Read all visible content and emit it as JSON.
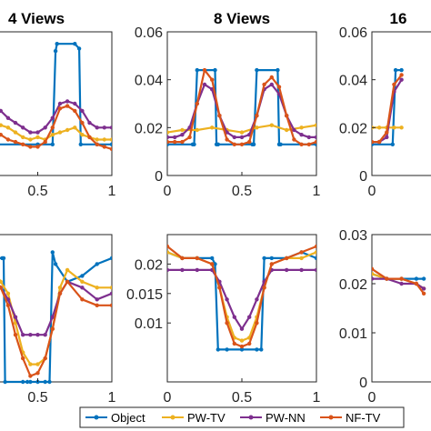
{
  "colors": {
    "object": "#0072BD",
    "pw_tv": "#EDB120",
    "pw_nn": "#7E2F8E",
    "nf_tv": "#D95319",
    "axis": "#262626"
  },
  "legend": {
    "position": "bottom-center",
    "entries": [
      "Object",
      "PW-TV",
      "PW-NN",
      "NF-TV"
    ]
  },
  "chart_data": [
    {
      "type": "line",
      "title": "4 Views",
      "xlim": [
        0,
        1
      ],
      "ylim": [
        0,
        0.06
      ],
      "xticks": [
        0.5,
        1
      ],
      "xtick_labels": [
        "0.5",
        "1"
      ],
      "yticks": [],
      "ytick_labels": [],
      "series": [
        {
          "name": "Object",
          "x": [
            0.0,
            0.01,
            0.05,
            0.12,
            0.15,
            0.5,
            0.6,
            0.62,
            0.63,
            0.75,
            0.78,
            0.79,
            0.9,
            1.0
          ],
          "y": [
            0.053,
            0.054,
            0.054,
            0.054,
            0.013,
            0.013,
            0.013,
            0.052,
            0.055,
            0.055,
            0.053,
            0.013,
            0.013,
            0.013
          ]
        },
        {
          "name": "PW-TV",
          "x": [
            0.0,
            0.05,
            0.1,
            0.15,
            0.2,
            0.25,
            0.3,
            0.35,
            0.4,
            0.45,
            0.5,
            0.55,
            0.6,
            0.65,
            0.7,
            0.75,
            0.8,
            0.85,
            0.9,
            0.95,
            1.0
          ],
          "y": [
            0.019,
            0.018,
            0.019,
            0.017,
            0.019,
            0.021,
            0.02,
            0.018,
            0.016,
            0.015,
            0.016,
            0.015,
            0.017,
            0.018,
            0.019,
            0.02,
            0.017,
            0.016,
            0.015,
            0.015,
            0.015
          ]
        },
        {
          "name": "PW-NN",
          "x": [
            0.0,
            0.05,
            0.1,
            0.15,
            0.2,
            0.25,
            0.3,
            0.35,
            0.4,
            0.45,
            0.5,
            0.55,
            0.6,
            0.65,
            0.7,
            0.75,
            0.8,
            0.85,
            0.9,
            0.95,
            1.0
          ],
          "y": [
            0.033,
            0.034,
            0.035,
            0.032,
            0.03,
            0.027,
            0.024,
            0.022,
            0.02,
            0.018,
            0.018,
            0.02,
            0.024,
            0.03,
            0.031,
            0.03,
            0.027,
            0.022,
            0.02,
            0.02,
            0.02
          ]
        },
        {
          "name": "NF-TV",
          "x": [
            0.0,
            0.05,
            0.1,
            0.15,
            0.2,
            0.25,
            0.3,
            0.35,
            0.4,
            0.45,
            0.5,
            0.55,
            0.6,
            0.65,
            0.7,
            0.75,
            0.8,
            0.85,
            0.9,
            0.95,
            1.0
          ],
          "y": [
            0.025,
            0.03,
            0.028,
            0.024,
            0.02,
            0.017,
            0.015,
            0.014,
            0.013,
            0.012,
            0.012,
            0.014,
            0.02,
            0.028,
            0.029,
            0.027,
            0.022,
            0.016,
            0.013,
            0.012,
            0.011
          ]
        }
      ]
    },
    {
      "type": "line",
      "title": "8 Views",
      "xlim": [
        0,
        1
      ],
      "ylim": [
        0,
        0.06
      ],
      "xticks": [
        0,
        0.5,
        1
      ],
      "xtick_labels": [
        "0",
        "0.5",
        "1"
      ],
      "yticks": [
        0,
        0.02,
        0.04,
        0.06
      ],
      "ytick_labels": [
        "0",
        "0.02",
        "0.04",
        "0.06"
      ],
      "series": [
        {
          "name": "Object",
          "x": [
            0.0,
            0.17,
            0.18,
            0.2,
            0.32,
            0.33,
            0.34,
            0.57,
            0.58,
            0.6,
            0.74,
            0.75,
            0.76,
            1.0
          ],
          "y": [
            0.013,
            0.013,
            0.013,
            0.044,
            0.044,
            0.013,
            0.013,
            0.013,
            0.013,
            0.044,
            0.044,
            0.013,
            0.013,
            0.013
          ]
        },
        {
          "name": "PW-TV",
          "x": [
            0.0,
            0.1,
            0.2,
            0.3,
            0.4,
            0.5,
            0.6,
            0.7,
            0.8,
            0.9,
            1.0
          ],
          "y": [
            0.018,
            0.019,
            0.019,
            0.02,
            0.019,
            0.018,
            0.02,
            0.021,
            0.019,
            0.02,
            0.021
          ]
        },
        {
          "name": "PW-NN",
          "x": [
            0.0,
            0.05,
            0.1,
            0.15,
            0.2,
            0.25,
            0.3,
            0.35,
            0.4,
            0.45,
            0.5,
            0.55,
            0.6,
            0.65,
            0.7,
            0.75,
            0.8,
            0.85,
            0.9,
            0.95,
            1.0
          ],
          "y": [
            0.016,
            0.016,
            0.017,
            0.02,
            0.03,
            0.038,
            0.036,
            0.025,
            0.018,
            0.016,
            0.016,
            0.017,
            0.025,
            0.036,
            0.038,
            0.034,
            0.025,
            0.019,
            0.017,
            0.016,
            0.016
          ]
        },
        {
          "name": "NF-TV",
          "x": [
            0.0,
            0.05,
            0.1,
            0.15,
            0.2,
            0.25,
            0.3,
            0.35,
            0.4,
            0.45,
            0.5,
            0.55,
            0.6,
            0.65,
            0.7,
            0.75,
            0.8,
            0.85,
            0.9,
            0.95,
            1.0
          ],
          "y": [
            0.014,
            0.014,
            0.014,
            0.016,
            0.03,
            0.044,
            0.04,
            0.025,
            0.015,
            0.013,
            0.013,
            0.014,
            0.025,
            0.038,
            0.041,
            0.037,
            0.025,
            0.015,
            0.013,
            0.013,
            0.014
          ]
        }
      ]
    },
    {
      "type": "line",
      "title": "16",
      "xlim": [
        0,
        1
      ],
      "ylim": [
        0,
        0.06
      ],
      "xticks": [
        0
      ],
      "xtick_labels": [
        "0"
      ],
      "yticks": [
        0,
        0.02,
        0.04,
        0.06
      ],
      "ytick_labels": [
        "0",
        "0.02",
        "0.04",
        "0.06"
      ],
      "series": [
        {
          "name": "Object",
          "x": [
            0.0,
            0.14,
            0.16,
            0.2
          ],
          "y": [
            0.013,
            0.013,
            0.044,
            0.044
          ]
        },
        {
          "name": "PW-TV",
          "x": [
            0.0,
            0.05,
            0.1,
            0.15,
            0.2
          ],
          "y": [
            0.02,
            0.02,
            0.02,
            0.02,
            0.02
          ]
        },
        {
          "name": "PW-NN",
          "x": [
            0.0,
            0.05,
            0.1,
            0.15,
            0.2
          ],
          "y": [
            0.014,
            0.014,
            0.016,
            0.035,
            0.04
          ]
        },
        {
          "name": "NF-TV",
          "x": [
            0.0,
            0.05,
            0.1,
            0.15,
            0.2
          ],
          "y": [
            0.014,
            0.014,
            0.018,
            0.038,
            0.042
          ]
        }
      ]
    },
    {
      "type": "line",
      "title": "",
      "xlim": [
        0,
        1
      ],
      "ylim": [
        0,
        0.025
      ],
      "xticks": [
        0.5,
        1
      ],
      "xtick_labels": [
        "0.5",
        "1"
      ],
      "yticks": [],
      "ytick_labels": [],
      "series": [
        {
          "name": "Object",
          "x": [
            0.0,
            0.2,
            0.26,
            0.27,
            0.28,
            0.4,
            0.43,
            0.45,
            0.5,
            0.55,
            0.58,
            0.6,
            0.62,
            0.7,
            0.8,
            0.9,
            1.0
          ],
          "y": [
            0.021,
            0.021,
            0.021,
            0.021,
            0.0,
            0.0,
            0.0,
            0.0,
            0.0,
            0.0,
            0.0,
            0.022,
            0.02,
            0.017,
            0.018,
            0.02,
            0.021
          ]
        },
        {
          "name": "PW-TV",
          "x": [
            0.0,
            0.1,
            0.2,
            0.25,
            0.3,
            0.35,
            0.4,
            0.45,
            0.5,
            0.55,
            0.6,
            0.65,
            0.7,
            0.8,
            0.9,
            1.0
          ],
          "y": [
            0.018,
            0.02,
            0.019,
            0.017,
            0.015,
            0.01,
            0.005,
            0.003,
            0.003,
            0.004,
            0.009,
            0.016,
            0.019,
            0.017,
            0.016,
            0.016
          ]
        },
        {
          "name": "PW-NN",
          "x": [
            0.0,
            0.1,
            0.2,
            0.25,
            0.3,
            0.35,
            0.4,
            0.45,
            0.5,
            0.55,
            0.6,
            0.65,
            0.7,
            0.8,
            0.9,
            1.0
          ],
          "y": [
            0.015,
            0.016,
            0.017,
            0.016,
            0.014,
            0.011,
            0.008,
            0.008,
            0.008,
            0.008,
            0.011,
            0.015,
            0.017,
            0.016,
            0.014,
            0.015
          ]
        },
        {
          "name": "NF-TV",
          "x": [
            0.0,
            0.1,
            0.2,
            0.25,
            0.3,
            0.35,
            0.4,
            0.45,
            0.5,
            0.55,
            0.6,
            0.65,
            0.7,
            0.8,
            0.9,
            1.0
          ],
          "y": [
            0.021,
            0.02,
            0.018,
            0.016,
            0.013,
            0.008,
            0.004,
            0.001,
            0.0015,
            0.004,
            0.009,
            0.015,
            0.017,
            0.014,
            0.013,
            0.013
          ]
        }
      ]
    },
    {
      "type": "line",
      "title": "",
      "xlim": [
        0,
        1
      ],
      "ylim": [
        0,
        0.025
      ],
      "xticks": [
        0,
        0.5,
        1
      ],
      "xtick_labels": [
        "0",
        "0.5",
        "1"
      ],
      "yticks": [
        0.01,
        0.015,
        0.02
      ],
      "ytick_labels": [
        "0.01",
        "0.015",
        "0.02"
      ],
      "series": [
        {
          "name": "Object",
          "x": [
            0.0,
            0.1,
            0.2,
            0.3,
            0.32,
            0.34,
            0.4,
            0.5,
            0.6,
            0.63,
            0.65,
            0.7,
            0.8,
            0.9,
            1.0
          ],
          "y": [
            0.022,
            0.021,
            0.021,
            0.021,
            0.02,
            0.0055,
            0.0055,
            0.0055,
            0.0055,
            0.0055,
            0.021,
            0.021,
            0.021,
            0.022,
            0.021
          ]
        },
        {
          "name": "PW-TV",
          "x": [
            0.0,
            0.1,
            0.2,
            0.3,
            0.35,
            0.4,
            0.45,
            0.5,
            0.55,
            0.6,
            0.65,
            0.7,
            0.8,
            0.9,
            1.0
          ],
          "y": [
            0.022,
            0.021,
            0.021,
            0.02,
            0.016,
            0.011,
            0.0075,
            0.007,
            0.0075,
            0.011,
            0.016,
            0.02,
            0.021,
            0.021,
            0.022
          ]
        },
        {
          "name": "PW-NN",
          "x": [
            0.0,
            0.1,
            0.2,
            0.3,
            0.35,
            0.4,
            0.45,
            0.5,
            0.55,
            0.6,
            0.65,
            0.7,
            0.8,
            0.9,
            1.0
          ],
          "y": [
            0.019,
            0.019,
            0.019,
            0.019,
            0.017,
            0.014,
            0.011,
            0.009,
            0.011,
            0.014,
            0.017,
            0.019,
            0.019,
            0.019,
            0.019
          ]
        },
        {
          "name": "NF-TV",
          "x": [
            0.0,
            0.1,
            0.2,
            0.3,
            0.35,
            0.4,
            0.45,
            0.5,
            0.55,
            0.6,
            0.65,
            0.7,
            0.8,
            0.9,
            1.0
          ],
          "y": [
            0.023,
            0.021,
            0.021,
            0.02,
            0.016,
            0.01,
            0.0065,
            0.006,
            0.0065,
            0.01,
            0.016,
            0.02,
            0.021,
            0.022,
            0.023
          ]
        }
      ]
    },
    {
      "type": "line",
      "title": "",
      "xlim": [
        0,
        1
      ],
      "ylim": [
        0,
        0.03
      ],
      "xticks": [
        0
      ],
      "xtick_labels": [
        "0"
      ],
      "yticks": [
        0,
        0.01,
        0.02,
        0.03
      ],
      "ytick_labels": [
        "0",
        "0.01",
        "0.02",
        "0.03"
      ],
      "series": [
        {
          "name": "Object",
          "x": [
            0.0,
            0.1,
            0.2,
            0.3,
            0.35
          ],
          "y": [
            0.022,
            0.021,
            0.021,
            0.021,
            0.021
          ]
        },
        {
          "name": "PW-TV",
          "x": [
            0.0,
            0.1,
            0.2,
            0.3,
            0.35
          ],
          "y": [
            0.022,
            0.021,
            0.021,
            0.02,
            0.019
          ]
        },
        {
          "name": "PW-NN",
          "x": [
            0.0,
            0.1,
            0.2,
            0.3,
            0.35
          ],
          "y": [
            0.021,
            0.021,
            0.02,
            0.02,
            0.019
          ]
        },
        {
          "name": "NF-TV",
          "x": [
            0.0,
            0.1,
            0.2,
            0.3,
            0.35
          ],
          "y": [
            0.023,
            0.021,
            0.021,
            0.02,
            0.018
          ]
        }
      ]
    }
  ]
}
